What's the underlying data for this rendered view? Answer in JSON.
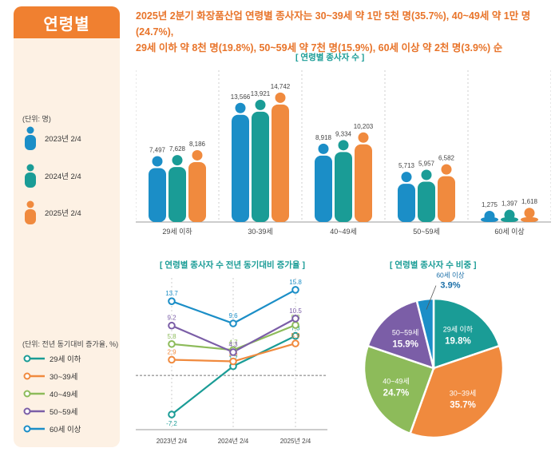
{
  "sidebar": {
    "title": "연령별",
    "bar_unit": "(단위: 명)",
    "bar_legend": [
      "2023년 2/4",
      "2024년 2/4",
      "2025년 2/4"
    ],
    "line_unit": "(단위: 전년 동기대비 증가율, %)",
    "line_legend": [
      "29세 이하",
      "30~39세",
      "40~49세",
      "50~59세",
      "60세 이상"
    ]
  },
  "headline": {
    "line1": "2025년 2분기 화장품산업 연령별 종사자는 30~39세 약 1만 5천 명(35.7%), 40~49세 약 1만 명(24.7%),",
    "line2": "29세 이하 약 8천 명(19.8%), 50~59세 약 7천 명(15.9%), 60세 이상 약 2천 명(3.9%) 순"
  },
  "chart_data": [
    {
      "type": "bar",
      "title": "[ 연령별 종사자 수 ]",
      "categories": [
        "29세 이하",
        "30-39세",
        "40~49세",
        "50~59세",
        "60세 이상"
      ],
      "series": [
        {
          "name": "2023년 2/4",
          "values": [
            7497,
            13566,
            8918,
            5713,
            1275
          ],
          "labels": [
            "7,497",
            "13,566",
            "8,918",
            "5,713",
            "1,275"
          ]
        },
        {
          "name": "2024년 2/4",
          "values": [
            7628,
            13921,
            9334,
            5957,
            1397
          ],
          "labels": [
            "7,628",
            "13,921",
            "9,334",
            "5,957",
            "1,397"
          ]
        },
        {
          "name": "2025년 2/4",
          "values": [
            8186,
            14742,
            10203,
            6582,
            1618
          ],
          "labels": [
            "8,186",
            "14,742",
            "10,203",
            "6,582",
            "1,618"
          ]
        }
      ],
      "ylim": [
        0,
        18000
      ],
      "colors": [
        "#1b8ec7",
        "#1a9c96",
        "#f08a3e"
      ]
    },
    {
      "type": "line",
      "title": "[ 연령별 종사자 수 전년 동기대비 증가율 ]",
      "x": [
        "2023년 2/4",
        "2024년 2/4",
        "2025년 2/4"
      ],
      "series": [
        {
          "name": "29세 이하",
          "values": [
            -7.2,
            1.7,
            7.3
          ],
          "labels": [
            "-7.2",
            "1.7",
            "7.3"
          ],
          "color": "#1a9c96"
        },
        {
          "name": "30~39세",
          "values": [
            2.9,
            2.6,
            5.9
          ],
          "labels": [
            "2.9",
            "2.6",
            "5.9"
          ],
          "color": "#f08a3e"
        },
        {
          "name": "40~49세",
          "values": [
            5.8,
            4.7,
            9.3
          ],
          "labels": [
            "5.8",
            "4.7",
            "9.3"
          ],
          "color": "#8dbb5a"
        },
        {
          "name": "50~59세",
          "values": [
            9.2,
            4.3,
            10.5
          ],
          "labels": [
            "9.2",
            "4.3",
            "10.5"
          ],
          "color": "#7b5ea7"
        },
        {
          "name": "60세 이상",
          "values": [
            13.7,
            9.6,
            15.8
          ],
          "labels": [
            "13.7",
            "9.6",
            "15.8"
          ],
          "color": "#1b8ec7"
        }
      ],
      "ylim": [
        -10,
        18
      ],
      "baseline": 0
    },
    {
      "type": "pie",
      "title": "[ 연령별 종사자 수 비중 ]",
      "slices": [
        {
          "label": "29세 이하",
          "value": 19.8,
          "display": "19.8%",
          "color": "#1a9c96"
        },
        {
          "label": "30~39세",
          "value": 35.7,
          "display": "35.7%",
          "color": "#f08a3e"
        },
        {
          "label": "40~49세",
          "value": 24.7,
          "display": "24.7%",
          "color": "#8dbb5a"
        },
        {
          "label": "50~59세",
          "value": 15.9,
          "display": "15.9%",
          "color": "#7b5ea7"
        },
        {
          "label": "60세 이상",
          "value": 3.9,
          "display": "3.9%",
          "color": "#1b8ec7"
        }
      ]
    }
  ]
}
